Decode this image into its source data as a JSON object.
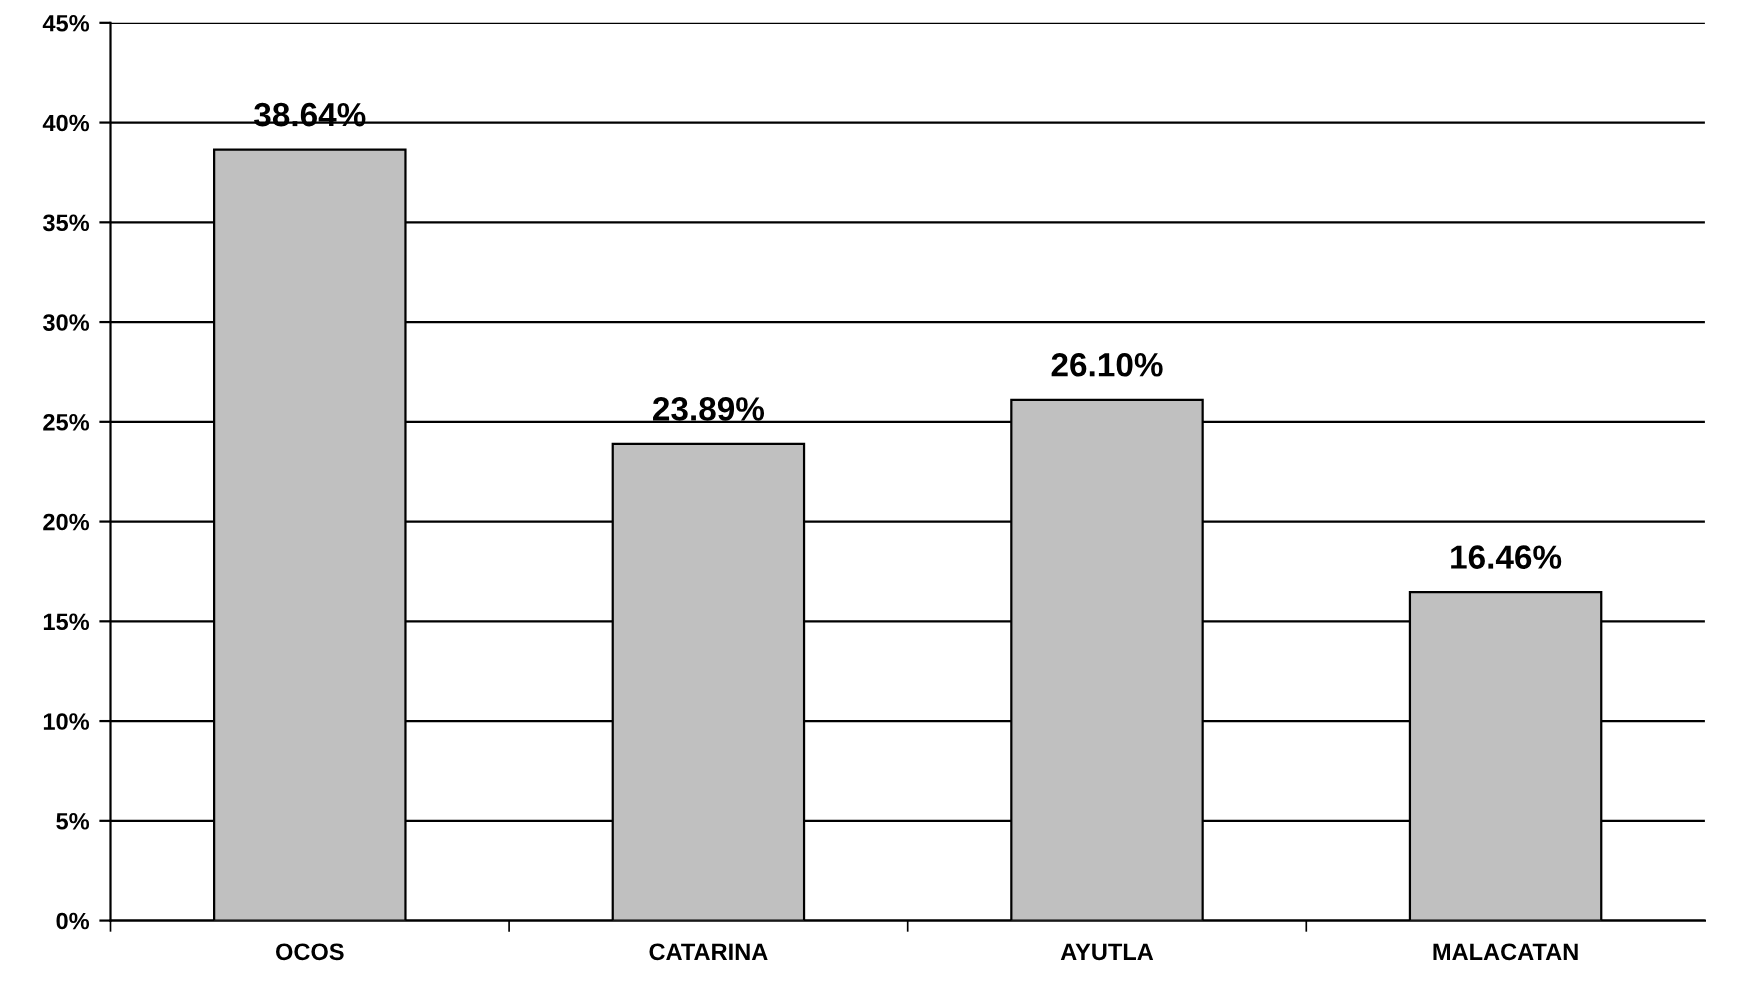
{
  "chart_data": {
    "type": "bar",
    "categories": [
      "OCOS",
      "CATARINA",
      "AYUTLA",
      "MALACATAN"
    ],
    "values": [
      38.64,
      23.89,
      26.1,
      16.46
    ],
    "value_labels": [
      "38.64%",
      "23.89%",
      "26.10%",
      "16.46%"
    ],
    "color": "#c0c0c0",
    "ylim": [
      0,
      45
    ],
    "yticks": [
      {
        "value": 0,
        "label": "0%"
      },
      {
        "value": 5,
        "label": "5%"
      },
      {
        "value": 10,
        "label": "10%"
      },
      {
        "value": 15,
        "label": "15%"
      },
      {
        "value": 20,
        "label": "20%"
      },
      {
        "value": 25,
        "label": "25%"
      },
      {
        "value": 30,
        "label": "30%"
      },
      {
        "value": 35,
        "label": "35%"
      },
      {
        "value": 40,
        "label": "40%"
      },
      {
        "value": 45,
        "label": "45%"
      }
    ],
    "grid": "y",
    "legend": false
  }
}
